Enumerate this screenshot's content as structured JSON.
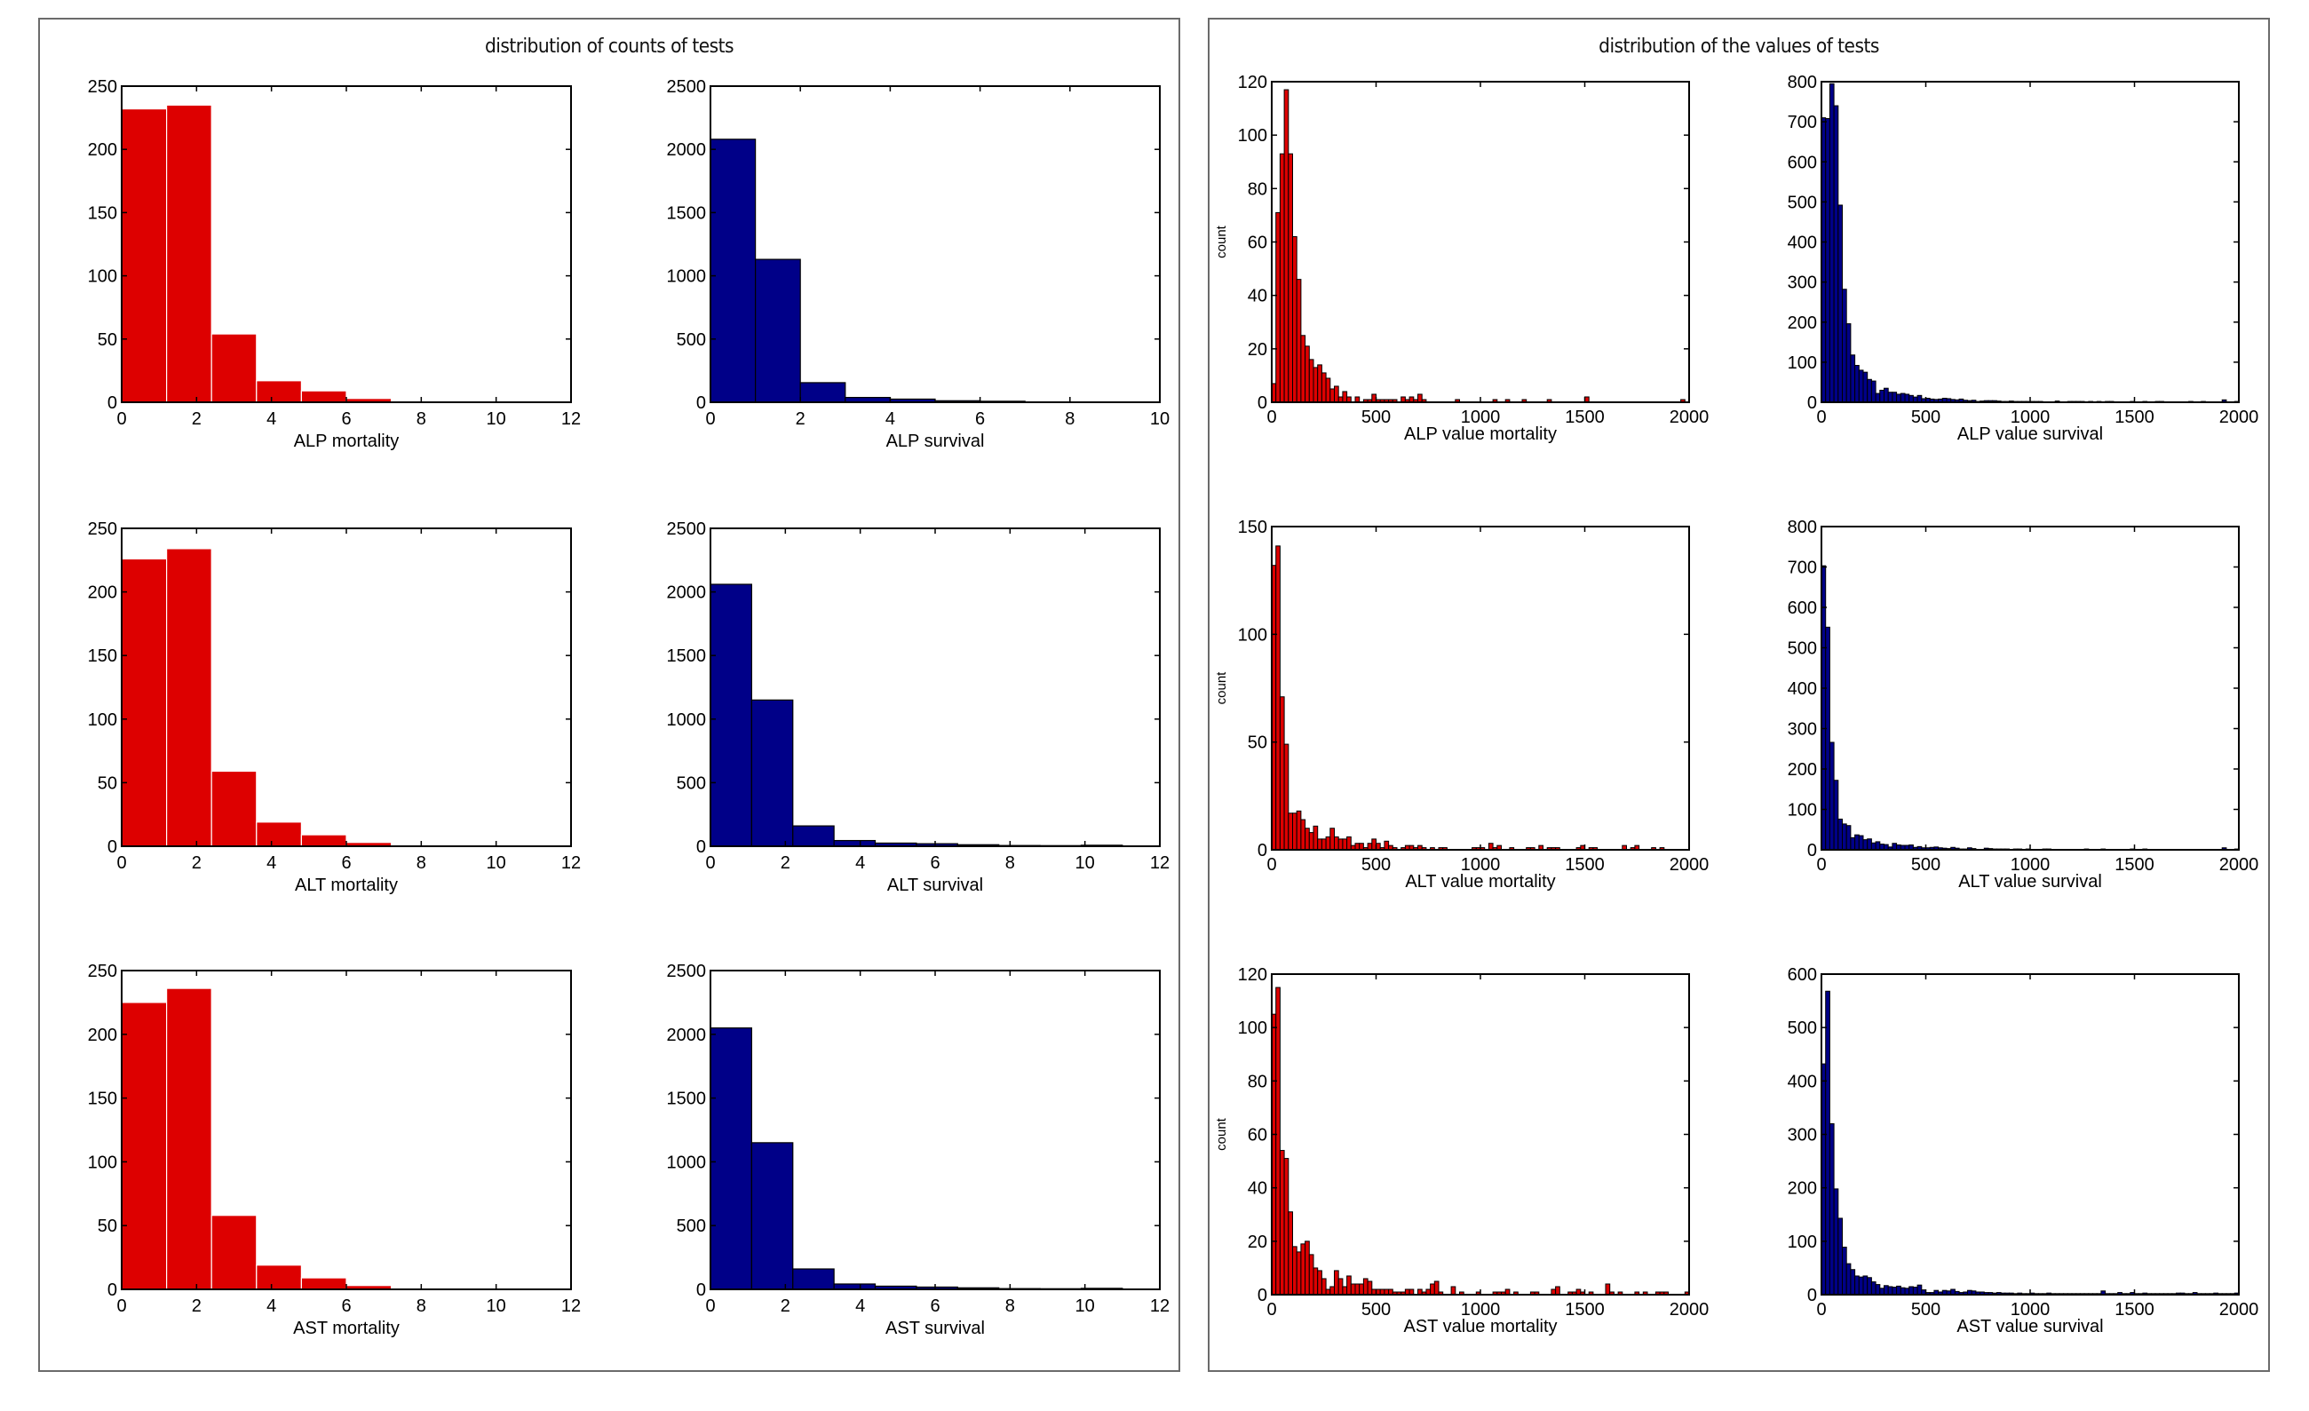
{
  "panels": {
    "left_title": "distribution of counts of tests",
    "right_title": "distribution of the values of tests"
  },
  "colors": {
    "mortality": "#dd0000",
    "survival": "#000088",
    "axis": "#000000",
    "panel_border": "#6b6b6b"
  },
  "chart_data": [
    {
      "id": "alp-mortality-counts",
      "type": "bar",
      "group": "counts",
      "xlabel": "ALP mortality",
      "ylabel": "",
      "xlim": [
        0,
        12
      ],
      "ylim": [
        0,
        250
      ],
      "xticks": [
        0,
        2,
        4,
        6,
        8,
        10,
        12
      ],
      "yticks": [
        0,
        50,
        100,
        150,
        200,
        250
      ],
      "bin_start": 0,
      "bin_width": 1.2,
      "series_color": "mortality",
      "values": [
        232,
        235,
        54,
        17,
        9,
        3,
        1,
        1,
        1,
        1
      ]
    },
    {
      "id": "alp-survival-counts",
      "type": "bar",
      "group": "counts",
      "xlabel": "ALP survival",
      "ylabel": "",
      "xlim": [
        0,
        10
      ],
      "ylim": [
        0,
        2500
      ],
      "xticks": [
        0,
        2,
        4,
        6,
        8,
        10
      ],
      "yticks": [
        0,
        500,
        1000,
        1500,
        2000,
        2500
      ],
      "bin_start": 0,
      "bin_width": 1,
      "series_color": "survival",
      "values": [
        2080,
        1130,
        155,
        38,
        25,
        12,
        8,
        3,
        2,
        2
      ]
    },
    {
      "id": "alt-mortality-counts",
      "type": "bar",
      "group": "counts",
      "xlabel": "ALT mortality",
      "ylabel": "",
      "xlim": [
        0,
        12
      ],
      "ylim": [
        0,
        250
      ],
      "xticks": [
        0,
        2,
        4,
        6,
        8,
        10,
        12
      ],
      "yticks": [
        0,
        50,
        100,
        150,
        200,
        250
      ],
      "bin_start": 0,
      "bin_width": 1.2,
      "series_color": "mortality",
      "values": [
        226,
        234,
        59,
        19,
        9,
        3,
        1,
        1,
        1,
        1
      ]
    },
    {
      "id": "alt-survival-counts",
      "type": "bar",
      "group": "counts",
      "xlabel": "ALT survival",
      "ylabel": "",
      "xlim": [
        0,
        12
      ],
      "ylim": [
        0,
        2500
      ],
      "xticks": [
        0,
        2,
        4,
        6,
        8,
        10,
        12
      ],
      "yticks": [
        0,
        500,
        1000,
        1500,
        2000,
        2500
      ],
      "bin_start": 0,
      "bin_width": 1.1,
      "series_color": "survival",
      "values": [
        2060,
        1150,
        160,
        45,
        25,
        20,
        12,
        6,
        5,
        8
      ]
    },
    {
      "id": "ast-mortality-counts",
      "type": "bar",
      "group": "counts",
      "xlabel": "AST mortality",
      "ylabel": "",
      "xlim": [
        0,
        12
      ],
      "ylim": [
        0,
        250
      ],
      "xticks": [
        0,
        2,
        4,
        6,
        8,
        10,
        12
      ],
      "yticks": [
        0,
        50,
        100,
        150,
        200,
        250
      ],
      "bin_start": 0,
      "bin_width": 1.2,
      "series_color": "mortality",
      "values": [
        225,
        236,
        58,
        19,
        9,
        3,
        1,
        1,
        1,
        1
      ]
    },
    {
      "id": "ast-survival-counts",
      "type": "bar",
      "group": "counts",
      "xlabel": "AST survival",
      "ylabel": "",
      "xlim": [
        0,
        12
      ],
      "ylim": [
        0,
        2500
      ],
      "xticks": [
        0,
        2,
        4,
        6,
        8,
        10,
        12
      ],
      "yticks": [
        0,
        500,
        1000,
        1500,
        2000,
        2500
      ],
      "bin_start": 0,
      "bin_width": 1.1,
      "series_color": "survival",
      "values": [
        2050,
        1150,
        160,
        42,
        25,
        18,
        12,
        6,
        5,
        8
      ]
    },
    {
      "id": "alp-value-mortality",
      "type": "bar",
      "group": "values",
      "xlabel": "ALP value mortality",
      "ylabel": "count",
      "xlim": [
        0,
        2000
      ],
      "ylim": [
        0,
        120
      ],
      "xticks": [
        0,
        500,
        1000,
        1500,
        2000
      ],
      "yticks": [
        0,
        20,
        40,
        60,
        80,
        100,
        120
      ],
      "bin_start": 0,
      "bin_width": 20,
      "series_color": "mortality",
      "values": [
        7,
        71,
        93,
        117,
        93,
        62,
        46,
        25,
        21,
        16,
        13,
        14,
        11,
        9,
        5,
        6,
        2,
        4,
        2,
        0,
        2,
        0,
        1,
        1,
        3,
        1,
        1,
        1,
        1,
        1,
        0,
        2,
        1,
        2,
        1,
        3,
        1,
        0,
        0,
        0,
        0,
        0,
        0,
        0,
        1,
        0,
        0,
        0,
        0,
        0,
        0,
        0,
        0,
        1,
        0,
        0,
        1,
        0,
        0,
        0,
        1,
        0,
        0,
        0,
        0,
        0,
        1,
        0,
        0,
        0,
        0,
        0,
        0,
        0,
        0,
        2,
        0,
        0,
        0,
        0,
        0,
        0,
        0,
        0,
        0,
        0,
        0,
        0,
        0,
        0,
        0,
        0,
        0,
        0,
        0,
        0,
        0,
        0,
        1,
        0
      ]
    },
    {
      "id": "alp-value-survival",
      "type": "bar",
      "group": "values",
      "xlabel": "ALP value survival",
      "ylabel": "",
      "xlim": [
        0,
        2000
      ],
      "ylim": [
        0,
        800
      ],
      "xticks": [
        0,
        500,
        1000,
        1500,
        2000
      ],
      "yticks": [
        0,
        100,
        200,
        300,
        400,
        500,
        600,
        700,
        800
      ],
      "bin_start": 0,
      "bin_width": 20,
      "series_color": "survival",
      "values": [
        710,
        708,
        795,
        740,
        492,
        282,
        196,
        118,
        92,
        80,
        75,
        57,
        53,
        22,
        30,
        35,
        25,
        25,
        20,
        22,
        20,
        17,
        13,
        17,
        9,
        10,
        8,
        7,
        8,
        10,
        9,
        7,
        6,
        8,
        5,
        4,
        5,
        2,
        3,
        4,
        4,
        4,
        3,
        2,
        2,
        3,
        2,
        2,
        2,
        2,
        2,
        2,
        2,
        1,
        1,
        1,
        3,
        1,
        1,
        2,
        2,
        2,
        2,
        1,
        2,
        1,
        2,
        1,
        2,
        2,
        1,
        1,
        1,
        1,
        2,
        1,
        1,
        2,
        1,
        1,
        2,
        2,
        1,
        1,
        1,
        1,
        1,
        1,
        2,
        1,
        1,
        2,
        1,
        1,
        1,
        1,
        6,
        1,
        1,
        2
      ]
    },
    {
      "id": "alt-value-mortality",
      "type": "bar",
      "group": "values",
      "xlabel": "ALT value mortality",
      "ylabel": "count",
      "xlim": [
        0,
        2000
      ],
      "ylim": [
        0,
        150
      ],
      "xticks": [
        0,
        500,
        1000,
        1500,
        2000
      ],
      "yticks": [
        0,
        50,
        100,
        150
      ],
      "bin_start": 0,
      "bin_width": 20,
      "series_color": "mortality",
      "values": [
        132,
        141,
        71,
        49,
        17,
        17,
        18,
        14,
        10,
        8,
        11,
        5,
        5,
        6,
        10,
        6,
        5,
        5,
        6,
        2,
        3,
        3,
        1,
        3,
        5,
        3,
        1,
        4,
        2,
        1,
        0,
        1,
        2,
        2,
        1,
        2,
        1,
        0,
        1,
        0,
        1,
        1,
        0,
        0,
        0,
        0,
        0,
        0,
        1,
        1,
        1,
        0,
        3,
        1,
        2,
        0,
        0,
        1,
        0,
        0,
        0,
        1,
        1,
        0,
        2,
        0,
        1,
        1,
        1,
        0,
        0,
        0,
        0,
        1,
        2,
        0,
        1,
        1,
        0,
        0,
        0,
        0,
        0,
        0,
        2,
        0,
        1,
        2,
        0,
        0,
        0,
        1,
        0,
        1,
        0,
        0,
        0,
        0,
        0,
        0
      ]
    },
    {
      "id": "alt-value-survival",
      "type": "bar",
      "group": "values",
      "xlabel": "ALT value survival",
      "ylabel": "",
      "xlim": [
        0,
        2000
      ],
      "ylim": [
        0,
        800
      ],
      "xticks": [
        0,
        500,
        1000,
        1500,
        2000
      ],
      "yticks": [
        0,
        100,
        200,
        300,
        400,
        500,
        600,
        700,
        800
      ],
      "bin_start": 0,
      "bin_width": 20,
      "series_color": "survival",
      "values": [
        703,
        551,
        266,
        172,
        76,
        64,
        60,
        30,
        37,
        35,
        25,
        27,
        17,
        20,
        14,
        13,
        7,
        16,
        12,
        11,
        11,
        12,
        6,
        8,
        5,
        5,
        6,
        7,
        5,
        4,
        3,
        6,
        4,
        2,
        2,
        5,
        3,
        1,
        1,
        4,
        3,
        2,
        2,
        2,
        2,
        1,
        2,
        2,
        1,
        2,
        1,
        1,
        1,
        2,
        2,
        1,
        1,
        1,
        1,
        1,
        1,
        1,
        1,
        2,
        1,
        1,
        1,
        2,
        1,
        1,
        1,
        1,
        1,
        1,
        2,
        1,
        1,
        2,
        1,
        1,
        1,
        1,
        1,
        1,
        1,
        1,
        1,
        1,
        1,
        1,
        1,
        1,
        1,
        1,
        1,
        1,
        5,
        1,
        1,
        2
      ]
    },
    {
      "id": "ast-value-mortality",
      "type": "bar",
      "group": "values",
      "xlabel": "AST value mortality",
      "ylabel": "count",
      "xlim": [
        0,
        2000
      ],
      "ylim": [
        0,
        120
      ],
      "xticks": [
        0,
        500,
        1000,
        1500,
        2000
      ],
      "yticks": [
        0,
        20,
        40,
        60,
        80,
        100,
        120
      ],
      "bin_start": 0,
      "bin_width": 20,
      "series_color": "mortality",
      "values": [
        105,
        115,
        54,
        51,
        31,
        18,
        16,
        19,
        20,
        15,
        10,
        9,
        6,
        2,
        3,
        9,
        6,
        3,
        7,
        4,
        4,
        4,
        6,
        5,
        2,
        2,
        2,
        2,
        2,
        1,
        1,
        1,
        2,
        2,
        0,
        2,
        1,
        2,
        4,
        5,
        1,
        0,
        0,
        3,
        0,
        1,
        0,
        0,
        0,
        1,
        0,
        0,
        0,
        1,
        1,
        1,
        2,
        0,
        1,
        0,
        0,
        0,
        1,
        1,
        0,
        0,
        0,
        2,
        3,
        0,
        0,
        1,
        1,
        2,
        1,
        0,
        1,
        0,
        0,
        0,
        4,
        1,
        0,
        1,
        0,
        0,
        0,
        1,
        0,
        1,
        0,
        0,
        1,
        1,
        1,
        0,
        0,
        0,
        0,
        1
      ]
    },
    {
      "id": "ast-value-survival",
      "type": "bar",
      "group": "values",
      "xlabel": "AST value survival",
      "ylabel": "",
      "xlim": [
        0,
        2000
      ],
      "ylim": [
        0,
        600
      ],
      "xticks": [
        0,
        500,
        1000,
        1500,
        2000
      ],
      "yticks": [
        0,
        100,
        200,
        300,
        400,
        500,
        600
      ],
      "bin_start": 0,
      "bin_width": 20,
      "series_color": "survival",
      "values": [
        432,
        568,
        320,
        198,
        143,
        89,
        58,
        47,
        35,
        33,
        35,
        32,
        24,
        19,
        12,
        17,
        15,
        14,
        16,
        13,
        12,
        15,
        14,
        18,
        9,
        4,
        4,
        8,
        5,
        8,
        7,
        10,
        6,
        4,
        5,
        8,
        7,
        5,
        5,
        4,
        4,
        3,
        4,
        3,
        3,
        3,
        2,
        3,
        2,
        2,
        3,
        2,
        2,
        2,
        3,
        2,
        2,
        2,
        2,
        2,
        2,
        2,
        2,
        2,
        2,
        2,
        2,
        7,
        2,
        2,
        2,
        4,
        2,
        2,
        4,
        2,
        2,
        3,
        2,
        2,
        2,
        2,
        2,
        2,
        2,
        3,
        3,
        2,
        2,
        4,
        2,
        2,
        2,
        2,
        3,
        2,
        2,
        2,
        2,
        3
      ]
    }
  ]
}
